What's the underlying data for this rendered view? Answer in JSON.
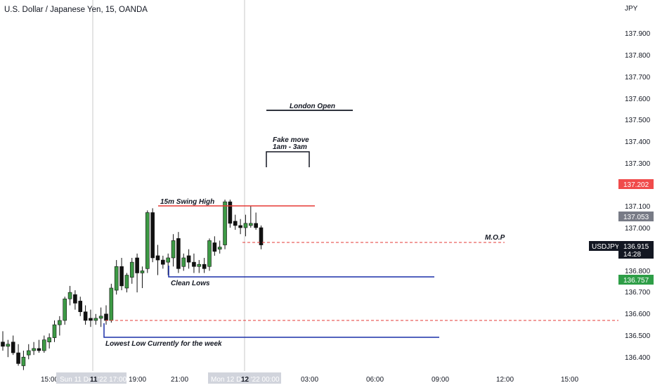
{
  "header": {
    "symbol_title": "U.S. Dollar / Japanese Yen, 15, OANDA"
  },
  "price_axis": {
    "currency": "JPY",
    "ticks": [
      "137.900",
      "137.800",
      "137.700",
      "137.600",
      "137.500",
      "137.400",
      "137.300",
      "137.100",
      "137.000",
      "136.800",
      "136.700",
      "136.600",
      "136.500",
      "136.400"
    ],
    "badges": {
      "red_level": "137.202",
      "gray_level": "137.053",
      "symbol": "USDJPY",
      "last_price": "136.915",
      "countdown": "14:28",
      "green_level": "136.757"
    }
  },
  "time_axis": {
    "labels": [
      "15:00",
      "19:00",
      "21:00",
      "03:00",
      "06:00",
      "09:00",
      "12:00",
      "15:00"
    ],
    "tick_11": "11",
    "tick_12": "12",
    "crosshair_sun": "Sun 11 Dec '22   17:00",
    "crosshair_mon": "Mon 12 Dec '22   00:00"
  },
  "colors": {
    "bull": "#3d9a45",
    "bear": "#111111",
    "red_line": "#e53935",
    "blue_line": "#1a2fa8",
    "badge_red": "#f04b4b",
    "badge_gray": "#787b86",
    "badge_green": "#2e9e47",
    "badge_black": "#131722"
  },
  "chart_data": {
    "type": "candlestick",
    "title": "U.S. Dollar / Japanese Yen, 15, OANDA",
    "ylabel": "JPY",
    "ylim": [
      136.35,
      138.0
    ],
    "candles": [
      {
        "o": 136.47,
        "h": 136.52,
        "l": 136.43,
        "c": 136.45
      },
      {
        "o": 136.45,
        "h": 136.48,
        "l": 136.4,
        "c": 136.46
      },
      {
        "o": 136.47,
        "h": 136.5,
        "l": 136.41,
        "c": 136.42
      },
      {
        "o": 136.42,
        "h": 136.46,
        "l": 136.36,
        "c": 136.37
      },
      {
        "o": 136.36,
        "h": 136.43,
        "l": 136.34,
        "c": 136.4
      },
      {
        "o": 136.41,
        "h": 136.46,
        "l": 136.39,
        "c": 136.43
      },
      {
        "o": 136.43,
        "h": 136.47,
        "l": 136.41,
        "c": 136.44
      },
      {
        "o": 136.44,
        "h": 136.48,
        "l": 136.42,
        "c": 136.43
      },
      {
        "o": 136.43,
        "h": 136.5,
        "l": 136.42,
        "c": 136.48
      },
      {
        "o": 136.47,
        "h": 136.51,
        "l": 136.44,
        "c": 136.49
      },
      {
        "o": 136.49,
        "h": 136.57,
        "l": 136.47,
        "c": 136.55
      },
      {
        "o": 136.55,
        "h": 136.59,
        "l": 136.5,
        "c": 136.57
      },
      {
        "o": 136.57,
        "h": 136.68,
        "l": 136.55,
        "c": 136.67
      },
      {
        "o": 136.67,
        "h": 136.73,
        "l": 136.64,
        "c": 136.7
      },
      {
        "o": 136.69,
        "h": 136.71,
        "l": 136.62,
        "c": 136.65
      },
      {
        "o": 136.66,
        "h": 136.68,
        "l": 136.59,
        "c": 136.61
      },
      {
        "o": 136.61,
        "h": 136.64,
        "l": 136.55,
        "c": 136.57
      },
      {
        "o": 136.58,
        "h": 136.62,
        "l": 136.54,
        "c": 136.57
      },
      {
        "o": 136.57,
        "h": 136.6,
        "l": 136.55,
        "c": 136.58
      },
      {
        "o": 136.58,
        "h": 136.63,
        "l": 136.54,
        "c": 136.59
      },
      {
        "o": 136.6,
        "h": 136.64,
        "l": 136.55,
        "c": 136.57
      },
      {
        "o": 136.57,
        "h": 136.74,
        "l": 136.56,
        "c": 136.72
      },
      {
        "o": 136.71,
        "h": 136.85,
        "l": 136.69,
        "c": 136.82
      },
      {
        "o": 136.82,
        "h": 136.86,
        "l": 136.71,
        "c": 136.73
      },
      {
        "o": 136.72,
        "h": 136.79,
        "l": 136.7,
        "c": 136.78
      },
      {
        "o": 136.77,
        "h": 136.86,
        "l": 136.74,
        "c": 136.84
      },
      {
        "o": 136.86,
        "h": 136.88,
        "l": 136.7,
        "c": 136.79
      },
      {
        "o": 136.79,
        "h": 136.82,
        "l": 136.72,
        "c": 136.8
      },
      {
        "o": 136.81,
        "h": 137.08,
        "l": 136.79,
        "c": 137.07
      },
      {
        "o": 137.07,
        "h": 137.09,
        "l": 136.84,
        "c": 136.86
      },
      {
        "o": 136.87,
        "h": 136.92,
        "l": 136.78,
        "c": 136.85
      },
      {
        "o": 136.85,
        "h": 136.87,
        "l": 136.81,
        "c": 136.83
      },
      {
        "o": 136.84,
        "h": 136.88,
        "l": 136.78,
        "c": 136.86
      },
      {
        "o": 136.86,
        "h": 136.97,
        "l": 136.82,
        "c": 136.94
      },
      {
        "o": 136.95,
        "h": 136.98,
        "l": 136.79,
        "c": 136.81
      },
      {
        "o": 136.82,
        "h": 136.88,
        "l": 136.8,
        "c": 136.86
      },
      {
        "o": 136.87,
        "h": 136.9,
        "l": 136.81,
        "c": 136.84
      },
      {
        "o": 136.84,
        "h": 136.88,
        "l": 136.79,
        "c": 136.82
      },
      {
        "o": 136.82,
        "h": 136.85,
        "l": 136.79,
        "c": 136.83
      },
      {
        "o": 136.83,
        "h": 136.86,
        "l": 136.79,
        "c": 136.81
      },
      {
        "o": 136.82,
        "h": 136.95,
        "l": 136.8,
        "c": 136.94
      },
      {
        "o": 136.93,
        "h": 136.96,
        "l": 136.87,
        "c": 136.89
      },
      {
        "o": 136.9,
        "h": 136.94,
        "l": 136.88,
        "c": 136.91
      },
      {
        "o": 136.92,
        "h": 137.13,
        "l": 136.9,
        "c": 137.12
      },
      {
        "o": 137.12,
        "h": 137.13,
        "l": 137.0,
        "c": 137.02
      },
      {
        "o": 137.03,
        "h": 137.06,
        "l": 136.99,
        "c": 137.01
      },
      {
        "o": 137.01,
        "h": 137.04,
        "l": 136.97,
        "c": 137.0
      },
      {
        "o": 137.0,
        "h": 137.06,
        "l": 136.96,
        "c": 137.02
      },
      {
        "o": 137.01,
        "h": 137.1,
        "l": 137.0,
        "c": 137.02
      },
      {
        "o": 137.02,
        "h": 137.07,
        "l": 136.99,
        "c": 137.0
      },
      {
        "o": 137.0,
        "h": 137.01,
        "l": 136.9,
        "c": 136.92
      }
    ],
    "levels": [
      {
        "label": "15m Swing High",
        "price": 137.1,
        "color": "red",
        "style": "solid"
      },
      {
        "label": "M.O.P",
        "price": 136.915,
        "color": "red",
        "style": "dashed"
      },
      {
        "label": "Clean Lows",
        "price": 136.77,
        "color": "blue",
        "style": "solid"
      },
      {
        "label": "",
        "price": 136.58,
        "color": "red",
        "style": "dashed"
      },
      {
        "label": "Lowest Low Currently for the week",
        "price": 136.51,
        "color": "blue",
        "style": "solid"
      }
    ],
    "annotations": {
      "london_open": "London Open",
      "fake_move_line1": "Fake move",
      "fake_move_line2": "1am - 3am",
      "swing_high": "15m Swing High",
      "mop": "M.O.P",
      "clean_lows": "Clean Lows",
      "lowest_low": "Lowest Low Currently for the week"
    }
  }
}
